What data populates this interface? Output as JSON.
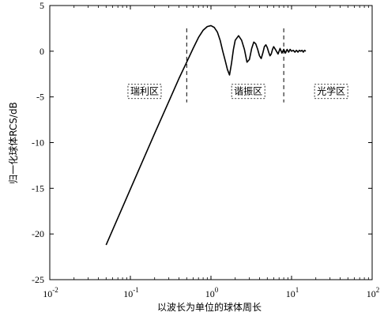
{
  "chart_data": {
    "type": "line",
    "xlabel": "以波长为单位的球体周长",
    "ylabel": "归一化球体RCS/dB",
    "xscale": "log",
    "xlim": [
      0.01,
      100
    ],
    "ylim": [
      -25,
      5
    ],
    "x_ticks": [
      {
        "value": 0.01,
        "base": "10",
        "exp": "-2"
      },
      {
        "value": 0.1,
        "base": "10",
        "exp": "-1"
      },
      {
        "value": 1,
        "base": "10",
        "exp": "0"
      },
      {
        "value": 10,
        "base": "10",
        "exp": "1"
      },
      {
        "value": 100,
        "base": "10",
        "exp": "2"
      }
    ],
    "y_ticks": [
      "5",
      "0",
      "-5",
      "-10",
      "-15",
      "-20",
      "-25"
    ],
    "grid": false,
    "boundaries": [
      0.5,
      8
    ],
    "regions": [
      {
        "label": "瑞利区",
        "x": 0.15,
        "y": -4.4
      },
      {
        "label": "谐振区",
        "x": 2.9,
        "y": -4.4
      },
      {
        "label": "光学区",
        "x": 31,
        "y": -4.4
      }
    ],
    "series": [
      {
        "x": [
          0.05,
          0.1,
          0.2,
          0.3,
          0.4,
          0.5,
          0.6,
          0.7,
          0.8,
          0.9,
          1.0,
          1.1,
          1.2,
          1.3,
          1.4,
          1.5,
          1.6,
          1.7,
          1.8,
          1.9,
          2.0,
          2.2,
          2.4,
          2.6,
          2.8,
          3.0,
          3.2,
          3.4,
          3.6,
          3.8,
          4.0,
          4.2,
          4.4,
          4.6,
          4.8,
          5.0,
          5.2,
          5.4,
          5.6,
          5.8,
          6.0,
          6.4,
          6.8,
          7.2,
          7.6,
          8.0,
          8.4,
          8.8,
          9.2,
          9.6,
          10.0,
          10.5,
          11.0,
          11.5,
          12.0,
          12.5,
          13.0,
          13.5,
          14.0,
          14.5,
          15.0
        ],
        "values": [
          -21.2,
          -15.1,
          -9.0,
          -5.5,
          -3.0,
          -1.2,
          0.3,
          1.5,
          2.3,
          2.7,
          2.8,
          2.6,
          2.1,
          1.2,
          0.0,
          -1.0,
          -2.0,
          -2.6,
          -1.3,
          0.2,
          1.2,
          1.7,
          1.2,
          0.2,
          -1.2,
          -0.9,
          0.3,
          1.0,
          0.8,
          0.2,
          -0.5,
          -0.8,
          -0.2,
          0.5,
          0.7,
          0.4,
          -0.1,
          -0.5,
          -0.3,
          0.2,
          0.5,
          0.1,
          -0.3,
          0.3,
          -0.2,
          0.2,
          -0.2,
          0.2,
          -0.1,
          0.2,
          0.0,
          0.1,
          -0.1,
          0.1,
          -0.1,
          0.1,
          0.0,
          0.1,
          -0.1,
          0.1,
          0.0
        ]
      }
    ]
  }
}
